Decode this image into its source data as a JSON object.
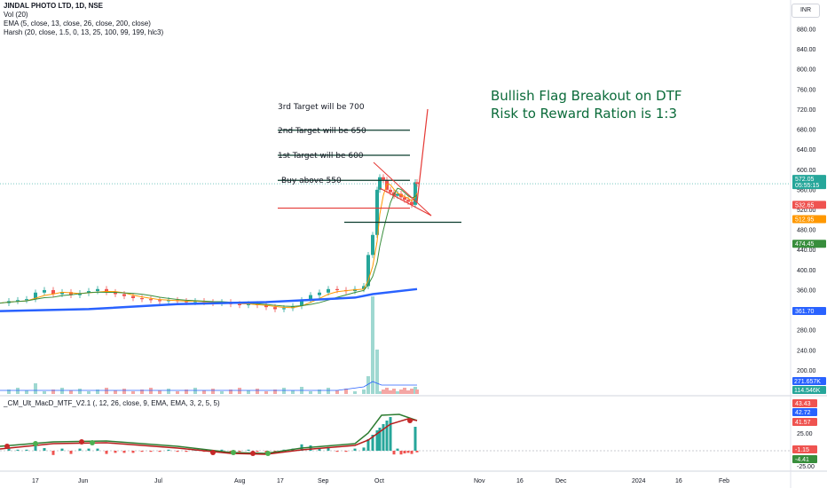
{
  "legend": {
    "symbol": "JINDAL PHOTO LTD, 1D, NSE",
    "vol": "Vol (20)",
    "ema": "EMA (5, close, 13, close, 26, close, 200, close)",
    "harsh": "Harsh (20, close, 1.5, 0, 13, 25, 100, 99, 199, hlc3)"
  },
  "macd_title": "_CM_Ult_MacD_MTF_V2.1 (, 12, 26, close, 9, EMA, EMA, 3, 2, 5, 5)",
  "currency": "INR",
  "annotations": {
    "target3": "3rd Target will be 700",
    "target2": "2nd Target will be 650",
    "target1": "1st Target will be 600",
    "buy": "Buy above 550",
    "headline_line1": "Bullish Flag Breakout on DTF",
    "headline_line2": "Risk to Reward Ration is 1:3"
  },
  "chart_data": [
    {
      "type": "candlestick",
      "panel": "price",
      "y_ticks": [
        "880.00",
        "840.00",
        "800.00",
        "760.00",
        "720.00",
        "680.00",
        "640.00",
        "600.00",
        "560.00",
        "520.00",
        "480.00",
        "440.00",
        "400.00",
        "360.00",
        "320.00",
        "280.00",
        "240.00",
        "200.00",
        "160.00"
      ],
      "x_ticks": [
        "17",
        "Jun",
        "Jul",
        "Aug",
        "17",
        "Sep",
        "Oct",
        "Nov",
        "16",
        "Dec",
        "2024",
        "16",
        "Feb"
      ],
      "price_labels": [
        {
          "value": "572.05",
          "note": "05:55:15",
          "color": "#26a69a"
        },
        {
          "value": "532.65",
          "color": "#ef5350"
        },
        {
          "value": "512.95",
          "color": "#ff9800"
        },
        {
          "value": "474.45",
          "color": "#388e3c"
        },
        {
          "value": "361.70",
          "color": "#2962ff"
        }
      ],
      "close_series_approx": [
        [
          0,
          334
        ],
        [
          10,
          338
        ],
        [
          20,
          340
        ],
        [
          30,
          342
        ],
        [
          40,
          355
        ],
        [
          50,
          360
        ],
        [
          60,
          352
        ],
        [
          70,
          356
        ],
        [
          80,
          350
        ],
        [
          90,
          354
        ],
        [
          100,
          358
        ],
        [
          110,
          362
        ],
        [
          120,
          356
        ],
        [
          130,
          352
        ],
        [
          140,
          348
        ],
        [
          150,
          344
        ],
        [
          160,
          342
        ],
        [
          170,
          340
        ],
        [
          180,
          338
        ],
        [
          190,
          340
        ],
        [
          200,
          338
        ],
        [
          210,
          336
        ],
        [
          220,
          338
        ],
        [
          230,
          336
        ],
        [
          240,
          334
        ],
        [
          250,
          336
        ],
        [
          260,
          332
        ],
        [
          270,
          330
        ],
        [
          280,
          332
        ],
        [
          290,
          330
        ],
        [
          300,
          326
        ],
        [
          310,
          322
        ],
        [
          320,
          324
        ],
        [
          330,
          328
        ],
        [
          340,
          340
        ],
        [
          350,
          350
        ],
        [
          360,
          355
        ],
        [
          370,
          362
        ],
        [
          380,
          360
        ],
        [
          390,
          358
        ],
        [
          400,
          362
        ],
        [
          410,
          368
        ],
        [
          415,
          430
        ],
        [
          420,
          470
        ],
        [
          425,
          560
        ],
        [
          428,
          585
        ],
        [
          432,
          580
        ],
        [
          436,
          560
        ],
        [
          440,
          555
        ],
        [
          444,
          548
        ],
        [
          448,
          552
        ],
        [
          452,
          545
        ],
        [
          456,
          540
        ],
        [
          460,
          536
        ],
        [
          464,
          530
        ],
        [
          468,
          575
        ],
        [
          470,
          572
        ]
      ],
      "ema_200_approx": [
        [
          0,
          318
        ],
        [
          100,
          322
        ],
        [
          200,
          332
        ],
        [
          300,
          336
        ],
        [
          400,
          345
        ],
        [
          420,
          352
        ],
        [
          470,
          362
        ]
      ],
      "levels": {
        "buy_above": 550,
        "target_1": 600,
        "target_2": 650,
        "target_3": 700
      }
    },
    {
      "type": "bar",
      "panel": "volume",
      "labels": [
        {
          "value": "271.657K",
          "color": "#2962ff"
        },
        {
          "value": "114.546K",
          "color": "#26a69a"
        }
      ],
      "spike_values_approx": [
        [
          "Sep-spike",
          3400
        ],
        [
          "Sep-spike-2",
          1500
        ]
      ]
    },
    {
      "type": "line",
      "panel": "macd",
      "y_ticks": [
        "25.00",
        "-25.00"
      ],
      "labels": [
        {
          "value": "43.43",
          "color": "#ef5350"
        },
        {
          "value": "42.72",
          "color": "#2962ff"
        },
        {
          "value": "41.57",
          "color": "#ef5350"
        },
        {
          "value": "-1.15",
          "color": "#ef5350"
        },
        {
          "value": "-4.41",
          "color": "#388e3c"
        }
      ]
    }
  ]
}
